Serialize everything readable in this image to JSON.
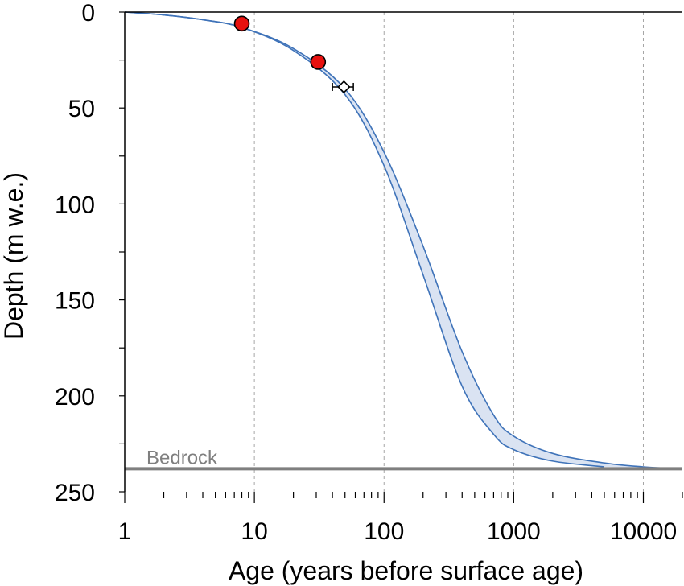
{
  "chart_data": {
    "type": "line",
    "xlabel": "Age (years before surface age)",
    "ylabel": "Depth (m w.e.)",
    "xscale": "log",
    "xlim": [
      1,
      20000
    ],
    "ylim": [
      0,
      250
    ],
    "y_inverted": true,
    "x_ticks": [
      "1",
      "10",
      "100",
      "1000",
      "10000"
    ],
    "y_ticks": [
      "0",
      "50",
      "100",
      "150",
      "200",
      "250"
    ],
    "grid": "vertical dashed at x decades",
    "series": [
      {
        "kind": "band_upper",
        "x": [
          1,
          2,
          4,
          8,
          20,
          50,
          100,
          200,
          400,
          700,
          1000,
          2000,
          5000,
          10000,
          20000
        ],
        "y": [
          0,
          1.5,
          4,
          8,
          19,
          40,
          73,
          122,
          177,
          210,
          221,
          230,
          235,
          237,
          238
        ]
      },
      {
        "kind": "band_lower",
        "x": [
          1,
          2,
          4,
          8,
          20,
          50,
          100,
          200,
          400,
          700,
          1000,
          2000,
          5000
        ],
        "y": [
          0,
          1.5,
          4,
          8,
          20,
          43,
          80,
          137,
          195,
          220,
          228,
          234,
          237
        ]
      }
    ],
    "markers": [
      {
        "shape": "circle",
        "x": 8,
        "y": 6,
        "color": "#e8110f"
      },
      {
        "shape": "circle",
        "x": 31,
        "y": 26,
        "color": "#e8110f"
      },
      {
        "shape": "diamond",
        "x": 49,
        "y": 39,
        "xerr": [
          40,
          58
        ],
        "color": "#ffffff"
      }
    ],
    "reference_line": {
      "label": "Bedrock",
      "y": 238,
      "color": "#7f7f7f"
    },
    "colors": {
      "band_line": "#3f73b9",
      "band_fill": "#dae3f2",
      "marker_red": "#e8110f",
      "grid": "#a6a6a6",
      "bedrock": "#7f7f7f"
    }
  }
}
